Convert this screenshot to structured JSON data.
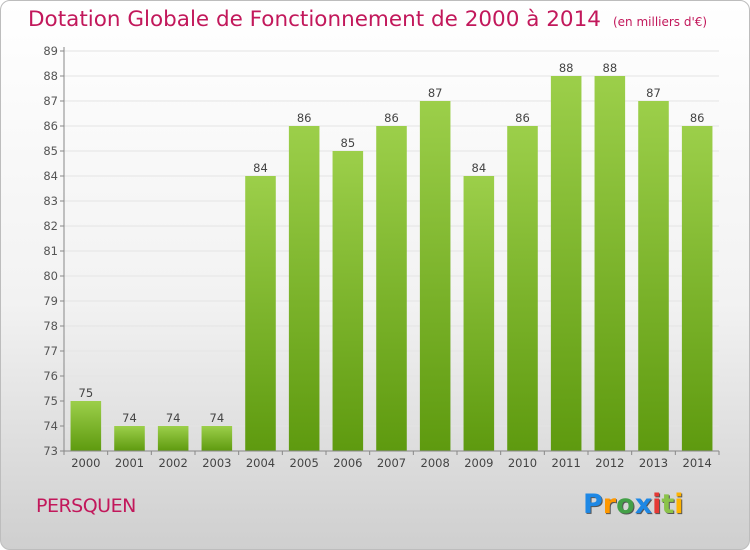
{
  "header": {
    "title": "Dotation Globale de Fonctionnement de 2000 à 2014",
    "subtitle": "(en milliers d'€)"
  },
  "footer": {
    "commune": "PERSQUEN",
    "logo_icon": "proxiti-logo-icon",
    "logo": "Proxiti"
  },
  "chart_data": {
    "type": "bar",
    "title": "Dotation Globale de Fonctionnement de 2000 à 2014",
    "subtitle": "(en milliers d'€)",
    "xlabel": "",
    "ylabel": "",
    "categories": [
      "2000",
      "2001",
      "2002",
      "2003",
      "2004",
      "2005",
      "2006",
      "2007",
      "2008",
      "2009",
      "2010",
      "2011",
      "2012",
      "2013",
      "2014"
    ],
    "values": [
      75,
      74,
      74,
      74,
      84,
      86,
      85,
      86,
      87,
      84,
      86,
      88,
      88,
      87,
      86
    ],
    "ylim": [
      73,
      89
    ],
    "yticks": [
      73,
      74,
      75,
      76,
      77,
      78,
      79,
      80,
      81,
      82,
      83,
      84,
      85,
      86,
      87,
      88,
      89
    ],
    "grid": true,
    "legend": "none",
    "bar_color_top": "#9ccf4a",
    "bar_color_bottom": "#5e9a0f",
    "grid_color": "#e4e4e4"
  }
}
